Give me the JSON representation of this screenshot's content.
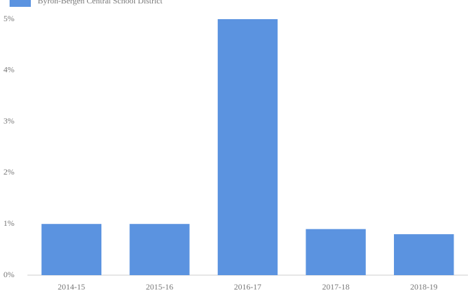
{
  "chart_data": {
    "type": "bar",
    "categories": [
      "2014-15",
      "2015-16",
      "2016-17",
      "2017-18",
      "2018-19"
    ],
    "series": [
      {
        "name": "Byron-Bergen Central School District",
        "color": "#5b93e0",
        "values": [
          1.0,
          1.0,
          5.0,
          0.9,
          0.8
        ]
      }
    ],
    "ylim": [
      0,
      5
    ],
    "yticks": [
      {
        "value": 0,
        "label": "0%"
      },
      {
        "value": 1,
        "label": "1%"
      },
      {
        "value": 2,
        "label": "2%"
      },
      {
        "value": 3,
        "label": "3%"
      },
      {
        "value": 4,
        "label": "4%"
      },
      {
        "value": 5,
        "label": "5%"
      }
    ],
    "grid": false,
    "legend": "top-left"
  }
}
